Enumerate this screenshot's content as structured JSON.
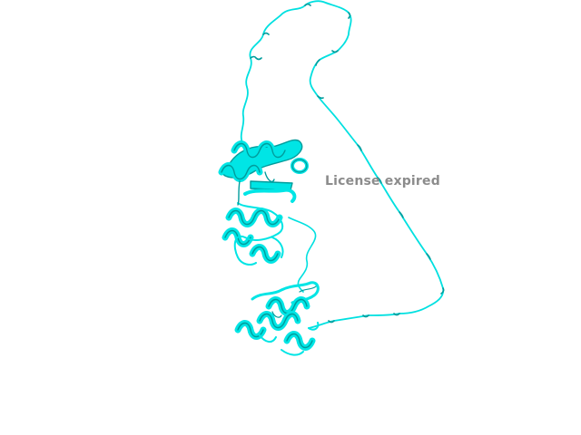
{
  "viewer": {
    "background_color": "#ffffff",
    "structure_color": "#00e5e5",
    "structure_shadow_color": "#009c9c",
    "representation": "cartoon"
  },
  "watermark": {
    "text": "License expired",
    "color": "#8c8c8c"
  }
}
